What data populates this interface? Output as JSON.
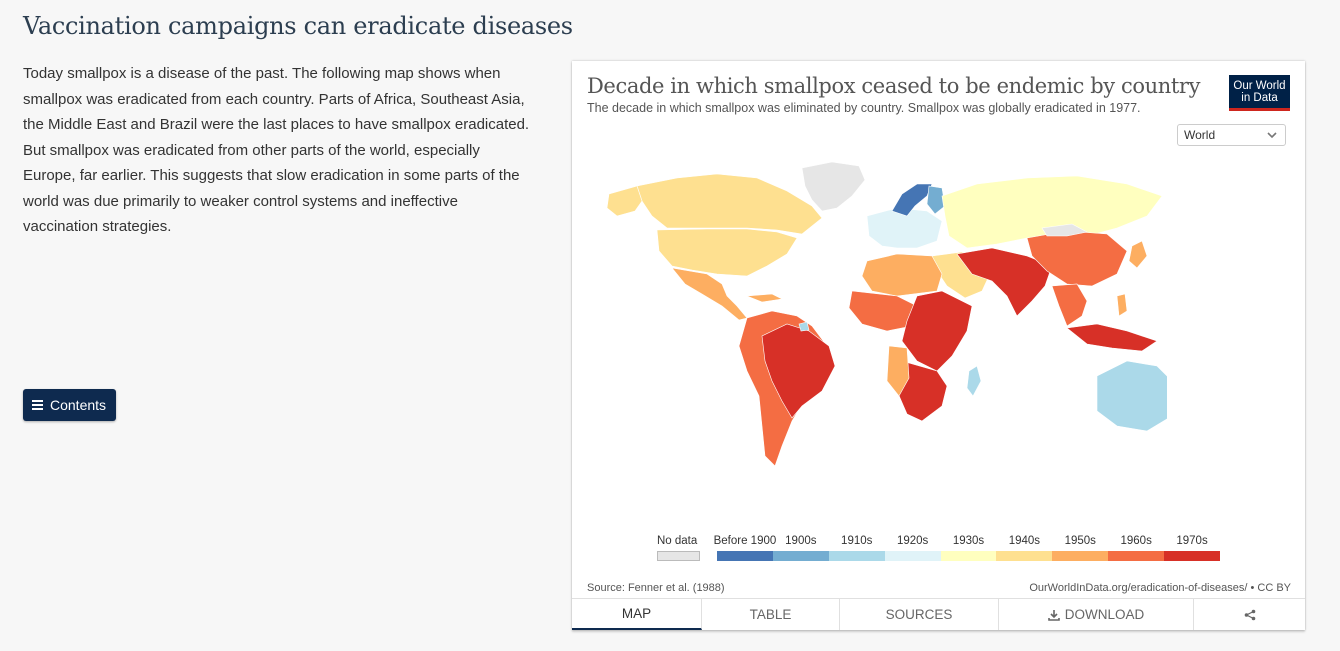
{
  "article": {
    "title": "Vaccination campaigns can eradicate diseases",
    "intro": "Today smallpox is a disease of the past. The following map shows when smallpox was eradicated from each country. Parts of Africa, Southeast Asia, the Middle East and Brazil were the last places to have smallpox eradicated. But smallpox was eradicated from other parts of the world, especially Europe, far earlier. This suggests that slow eradication in some parts of the world was due primarily to weaker control systems and ineffective vaccination strategies.",
    "contents_label": "Contents"
  },
  "chart": {
    "title": "Decade in which smallpox ceased to be endemic by country",
    "subtitle": "The decade in which smallpox was eliminated by country. Smallpox was globally eradicated in 1977.",
    "logo_line1": "Our World",
    "logo_line2": "in Data",
    "region_selected": "World",
    "source": "Source: Fenner et al. (1988)",
    "license": "OurWorldInData.org/eradication-of-diseases/ • CC BY",
    "tabs": [
      {
        "label": "MAP",
        "active": true
      },
      {
        "label": "TABLE",
        "active": false
      },
      {
        "label": "SOURCES",
        "active": false
      },
      {
        "label": "DOWNLOAD",
        "active": false
      }
    ],
    "icons": {
      "download": "download-icon",
      "share": "share-icon",
      "menu": "hamburger-icon",
      "chevron": "chevron-down-icon"
    }
  },
  "legend": {
    "nodata_label": "No data",
    "nodata_color": "#e6e6e6",
    "bins": [
      {
        "label": "Before 1900",
        "color": "#4575b4"
      },
      {
        "label": "1900s",
        "color": "#74add1"
      },
      {
        "label": "1910s",
        "color": "#abd9e9"
      },
      {
        "label": "1920s",
        "color": "#e0f3f8"
      },
      {
        "label": "1930s",
        "color": "#ffffbf"
      },
      {
        "label": "1940s",
        "color": "#fee090"
      },
      {
        "label": "1950s",
        "color": "#fdae61"
      },
      {
        "label": "1960s",
        "color": "#f46d43"
      },
      {
        "label": "1970s",
        "color": "#d73027"
      }
    ]
  },
  "chart_data": {
    "type": "choropleth",
    "title": "Decade in which smallpox ceased to be endemic by country",
    "regions": [
      {
        "name": "Norway/Sweden",
        "category": "Before 1900"
      },
      {
        "name": "Finland",
        "category": "1900s"
      },
      {
        "name": "Western Europe",
        "category": "1920s"
      },
      {
        "name": "Canada",
        "category": "1940s"
      },
      {
        "name": "United States",
        "category": "1940s"
      },
      {
        "name": "Mexico",
        "category": "1950s"
      },
      {
        "name": "Brazil",
        "category": "1970s"
      },
      {
        "name": "Argentina/Chile",
        "category": "1960s"
      },
      {
        "name": "Russia",
        "category": "1930s"
      },
      {
        "name": "China",
        "category": "1960s"
      },
      {
        "name": "India",
        "category": "1970s"
      },
      {
        "name": "Horn of Africa",
        "category": "1970s"
      },
      {
        "name": "West Africa",
        "category": "1960s"
      },
      {
        "name": "Southern Africa",
        "category": "1970s"
      },
      {
        "name": "Indonesia",
        "category": "1970s"
      },
      {
        "name": "Australia",
        "category": "1910s"
      },
      {
        "name": "Greenland",
        "category": "No data"
      }
    ]
  }
}
